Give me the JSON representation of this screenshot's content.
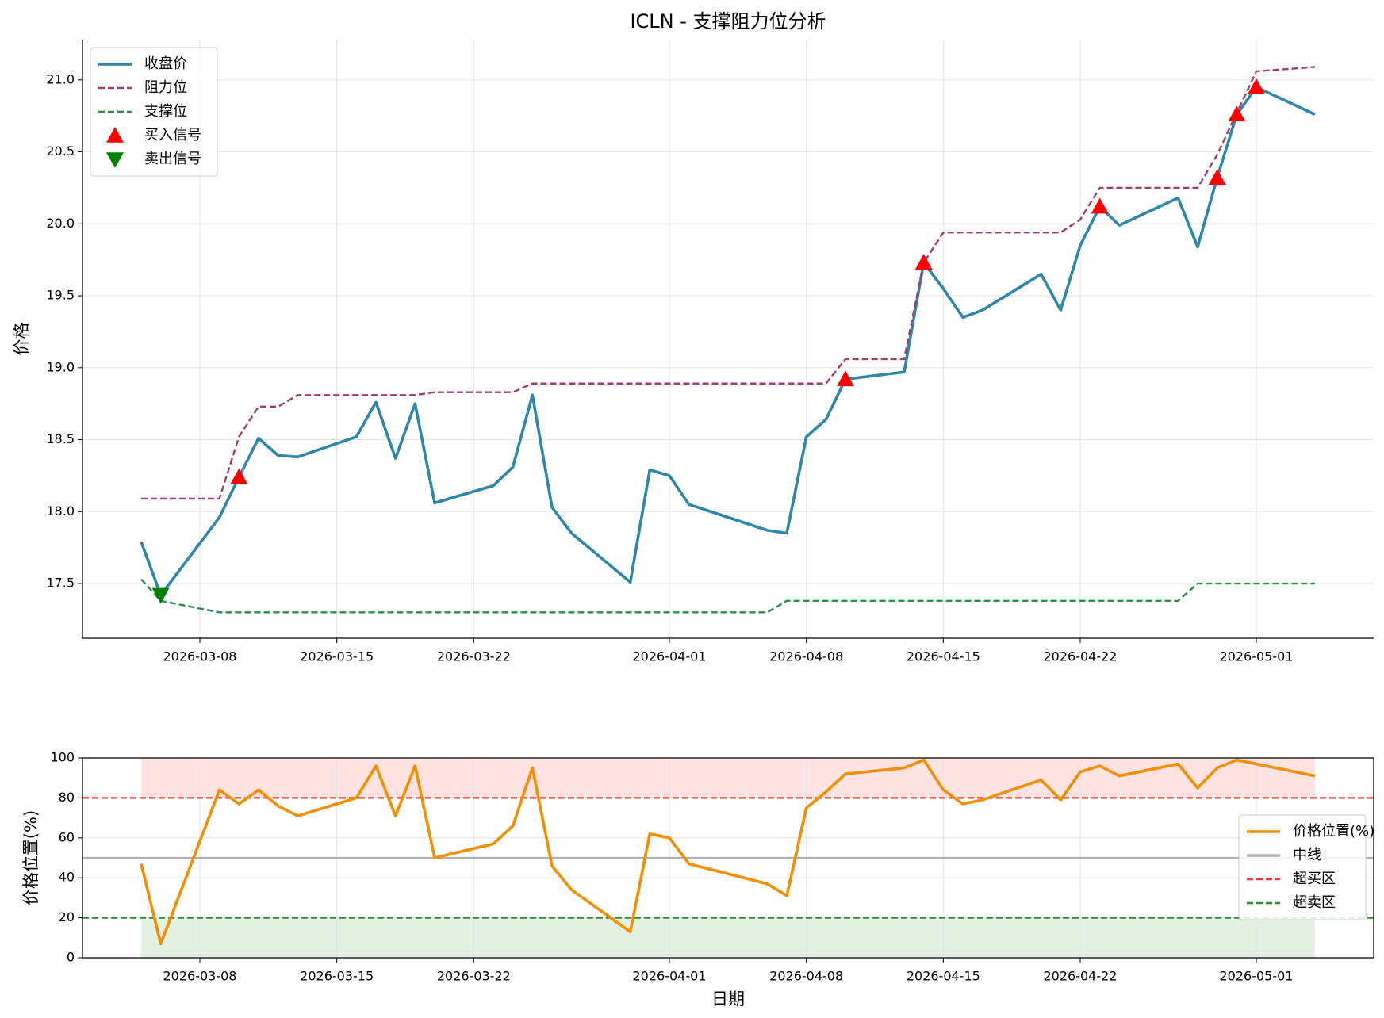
{
  "chart_data": [
    {
      "type": "line",
      "title": "ICLN - 支撑阻力位分析",
      "y_label": "价格",
      "x": [
        "2026-03-05",
        "2026-03-06",
        "2026-03-09",
        "2026-03-10",
        "2026-03-11",
        "2026-03-12",
        "2026-03-13",
        "2026-03-16",
        "2026-03-17",
        "2026-03-18",
        "2026-03-19",
        "2026-03-20",
        "2026-03-23",
        "2026-03-24",
        "2026-03-25",
        "2026-03-26",
        "2026-03-27",
        "2026-03-30",
        "2026-03-31",
        "2026-04-01",
        "2026-04-02",
        "2026-04-06",
        "2026-04-07",
        "2026-04-08",
        "2026-04-09",
        "2026-04-10",
        "2026-04-13",
        "2026-04-14",
        "2026-04-15",
        "2026-04-16",
        "2026-04-17",
        "2026-04-20",
        "2026-04-21",
        "2026-04-22",
        "2026-04-23",
        "2026-04-24",
        "2026-04-27",
        "2026-04-28",
        "2026-04-29",
        "2026-04-30",
        "2026-05-01",
        "2026-05-04"
      ],
      "series": [
        {
          "name": "收盘价",
          "color": "#2e86ab",
          "style": "solid",
          "values": [
            17.79,
            17.42,
            17.96,
            18.24,
            18.51,
            18.39,
            18.38,
            18.52,
            18.76,
            18.37,
            18.75,
            18.06,
            18.18,
            18.31,
            18.81,
            18.03,
            17.85,
            17.51,
            18.29,
            18.25,
            18.05,
            17.87,
            17.85,
            18.52,
            18.64,
            18.92,
            18.97,
            19.73,
            19.55,
            19.35,
            19.4,
            19.65,
            19.4,
            19.85,
            20.12,
            19.99,
            20.18,
            19.84,
            20.32,
            20.76,
            20.95,
            20.76
          ]
        },
        {
          "name": "阻力位",
          "color": "#a23b72",
          "style": "dashed",
          "values": [
            18.09,
            18.09,
            18.09,
            18.52,
            18.73,
            18.73,
            18.81,
            18.81,
            18.81,
            18.81,
            18.81,
            18.83,
            18.83,
            18.83,
            18.89,
            18.89,
            18.89,
            18.89,
            18.89,
            18.89,
            18.89,
            18.89,
            18.89,
            18.89,
            18.89,
            19.06,
            19.06,
            19.73,
            19.94,
            19.94,
            19.94,
            19.94,
            19.94,
            20.03,
            20.25,
            20.25,
            20.25,
            20.25,
            20.48,
            20.77,
            21.06,
            21.09
          ]
        },
        {
          "name": "支撑位",
          "color": "#2a8f4a",
          "style": "dashed",
          "values": [
            17.53,
            17.38,
            17.3,
            17.3,
            17.3,
            17.3,
            17.3,
            17.3,
            17.3,
            17.3,
            17.3,
            17.3,
            17.3,
            17.3,
            17.3,
            17.3,
            17.3,
            17.3,
            17.3,
            17.3,
            17.3,
            17.3,
            17.38,
            17.38,
            17.38,
            17.38,
            17.38,
            17.38,
            17.38,
            17.38,
            17.38,
            17.38,
            17.38,
            17.38,
            17.38,
            17.38,
            17.38,
            17.5,
            17.5,
            17.5,
            17.5,
            17.5
          ]
        },
        {
          "name": "买入信号",
          "color": "#ff0000",
          "style": "triangle-up",
          "x": [
            "2026-03-10",
            "2026-04-10",
            "2026-04-14",
            "2026-04-23",
            "2026-04-29",
            "2026-04-30",
            "2026-05-01"
          ],
          "values": [
            18.24,
            18.92,
            19.73,
            20.12,
            20.32,
            20.76,
            20.95
          ]
        },
        {
          "name": "卖出信号",
          "color": "#008000",
          "style": "triangle-down",
          "x": [
            "2026-03-06"
          ],
          "values": [
            17.42
          ]
        }
      ],
      "xlim": [
        "2026-03-02",
        "2026-05-07"
      ],
      "xticks": [
        "2026-03-08",
        "2026-03-15",
        "2026-03-22",
        "2026-04-01",
        "2026-04-08",
        "2026-04-15",
        "2026-04-22",
        "2026-05-01"
      ],
      "ylim": [
        17.12,
        21.28
      ],
      "yticks": [
        17.5,
        {
          "value": 18,
          "label": "18.0"
        },
        18.5,
        {
          "value": 19,
          "label": "19.0"
        },
        19.5,
        {
          "value": 20,
          "label": "20.0"
        },
        20.5,
        {
          "value": 21,
          "label": "21.0"
        }
      ],
      "grid": true,
      "legend": "upper-left"
    },
    {
      "type": "line",
      "y_label": "价格位置(%)",
      "x_label": "日期",
      "x": [
        "2026-03-05",
        "2026-03-06",
        "2026-03-09",
        "2026-03-10",
        "2026-03-11",
        "2026-03-12",
        "2026-03-13",
        "2026-03-16",
        "2026-03-17",
        "2026-03-18",
        "2026-03-19",
        "2026-03-20",
        "2026-03-23",
        "2026-03-24",
        "2026-03-25",
        "2026-03-26",
        "2026-03-27",
        "2026-03-30",
        "2026-03-31",
        "2026-04-01",
        "2026-04-02",
        "2026-04-06",
        "2026-04-07",
        "2026-04-08",
        "2026-04-09",
        "2026-04-10",
        "2026-04-13",
        "2026-04-14",
        "2026-04-15",
        "2026-04-16",
        "2026-04-17",
        "2026-04-20",
        "2026-04-21",
        "2026-04-22",
        "2026-04-23",
        "2026-04-24",
        "2026-04-27",
        "2026-04-28",
        "2026-04-29",
        "2026-04-30",
        "2026-05-01",
        "2026-05-04"
      ],
      "series": [
        {
          "name": "价格位置(%)",
          "color": "#f18f01",
          "style": "solid",
          "values": [
            47,
            7,
            84,
            77,
            84,
            76,
            71,
            80,
            96,
            71,
            96,
            50,
            57,
            66,
            95,
            46,
            34,
            13,
            62,
            60,
            47,
            37,
            31,
            75,
            83,
            92,
            95,
            99,
            84,
            77,
            79,
            89,
            79,
            93,
            96,
            91,
            97,
            85,
            95,
            99,
            97,
            91
          ]
        }
      ],
      "reference_lines": [
        {
          "name": "中线",
          "value": 50,
          "color": "#b0b0b0",
          "style": "solid"
        },
        {
          "name": "超买区",
          "value": 80,
          "color": "#ff3333",
          "style": "dashed"
        },
        {
          "name": "超卖区",
          "value": 20,
          "color": "#2e8b2e",
          "style": "dashed"
        }
      ],
      "bands": [
        {
          "range": [
            80,
            100
          ],
          "color": "rgba(255,0,0,0.11)"
        },
        {
          "range": [
            0,
            20
          ],
          "color": "rgba(0,128,0,0.11)"
        }
      ],
      "xlim": [
        "2026-03-02",
        "2026-05-07"
      ],
      "xticks": [
        "2026-03-08",
        "2026-03-15",
        "2026-03-22",
        "2026-04-01",
        "2026-04-08",
        "2026-04-15",
        "2026-04-22",
        "2026-05-01"
      ],
      "ylim": [
        0,
        100
      ],
      "yticks": [
        0,
        20,
        40,
        60,
        80,
        100
      ],
      "grid": true,
      "legend": "center-right"
    }
  ]
}
